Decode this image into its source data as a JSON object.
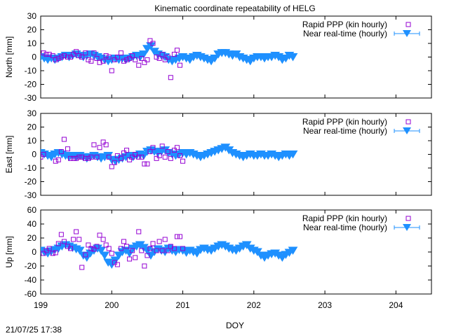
{
  "title": "Kinematic coordinate repeatability of HELG",
  "timestamp": "21/07/25 17:38",
  "colors": {
    "rapid": "#9400d3",
    "nrt": "#1e90ff",
    "axis": "#000000"
  },
  "chart_data": {
    "type": "scatter",
    "title": "Kinematic coordinate repeatability of HELG",
    "xlabel": "DOY",
    "xlim": [
      199,
      204.5
    ],
    "xticks": [
      199,
      200,
      201,
      202,
      203,
      204
    ],
    "xtick_labels": [
      "199",
      "200",
      "201",
      "202",
      "203",
      "204"
    ],
    "grid": false,
    "legend_position": "top-right",
    "legend": [
      "Rapid PPP (kin hourly)",
      "Near real-time (hourly)"
    ],
    "panels": [
      {
        "ylabel": "North [mm]",
        "ylim": [
          -30,
          30
        ],
        "yticks": [
          -30,
          -20,
          -10,
          0,
          10,
          20,
          30
        ],
        "series": [
          {
            "name": "Rapid PPP (kin hourly)",
            "marker": "open-square",
            "x": [
              199.04,
              199.08,
              199.12,
              199.17,
              199.21,
              199.25,
              199.29,
              199.33,
              199.38,
              199.42,
              199.46,
              199.5,
              199.54,
              199.58,
              199.63,
              199.67,
              199.71,
              199.75,
              199.79,
              199.83,
              199.88,
              199.92,
              199.96,
              200.0,
              200.04,
              200.08,
              200.13,
              200.17,
              200.21,
              200.25,
              200.29,
              200.33,
              200.38,
              200.42,
              200.46,
              200.5,
              200.54,
              200.58,
              200.63,
              200.67,
              200.71,
              200.75,
              200.79,
              200.83,
              200.88,
              200.92,
              200.96
            ],
            "y": [
              3,
              2,
              2,
              1,
              -2,
              -1,
              0,
              1,
              0,
              0,
              2,
              4,
              1,
              0,
              3,
              -2,
              -3,
              3,
              -1,
              -4,
              -3,
              1,
              0,
              -10,
              -2,
              0,
              3,
              -3,
              -2,
              -1,
              1,
              -2,
              -6,
              -1,
              -4,
              -2,
              12,
              10,
              0,
              -1,
              2,
              -2,
              0,
              -15,
              2,
              5,
              -6
            ]
          },
          {
            "name": "Near real-time (hourly)",
            "marker": "filled-triangle-down",
            "x": [
              199.0,
              199.05,
              199.1,
              199.15,
              199.2,
              199.25,
              199.3,
              199.35,
              199.4,
              199.45,
              199.5,
              199.55,
              199.6,
              199.65,
              199.7,
              199.75,
              199.8,
              199.85,
              199.9,
              199.95,
              200.0,
              200.05,
              200.1,
              200.15,
              200.2,
              200.25,
              200.3,
              200.35,
              200.4,
              200.45,
              200.5,
              200.55,
              200.6,
              200.65,
              200.7,
              200.75,
              200.8,
              200.85,
              200.9,
              200.95,
              201.0,
              201.05,
              201.1,
              201.15,
              201.2,
              201.25,
              201.3,
              201.35,
              201.4,
              201.45,
              201.5,
              201.55,
              201.6,
              201.65,
              201.7,
              201.75,
              201.8,
              201.85,
              201.9,
              201.95,
              202.0,
              202.05,
              202.1,
              202.15,
              202.2,
              202.25,
              202.3,
              202.35,
              202.4,
              202.45,
              202.5,
              202.55
            ],
            "y": [
              0,
              -1,
              -2,
              -1,
              -2,
              -1,
              0,
              1,
              0,
              1,
              2,
              1,
              0,
              1,
              2,
              1,
              0,
              -1,
              -2,
              -3,
              -2,
              -1,
              -2,
              -1,
              -2,
              -1,
              0,
              1,
              0,
              2,
              6,
              8,
              4,
              2,
              1,
              0,
              -2,
              -3,
              -2,
              -1,
              0,
              -1,
              -2,
              0,
              1,
              0,
              -1,
              -2,
              -3,
              -1,
              2,
              3,
              3,
              2,
              1,
              2,
              0,
              -1,
              -2,
              -3,
              -1,
              0,
              0,
              -1,
              0,
              0,
              1,
              0,
              -2,
              -1,
              1,
              0
            ]
          }
        ]
      },
      {
        "ylabel": "East [mm]",
        "ylim": [
          -30,
          30
        ],
        "yticks": [
          -30,
          -20,
          -10,
          0,
          10,
          20,
          30
        ],
        "series": [
          {
            "name": "Rapid PPP (kin hourly)",
            "marker": "open-square",
            "x": [
              199.0,
              199.04,
              199.21,
              199.25,
              199.29,
              199.33,
              199.38,
              199.42,
              199.46,
              199.5,
              199.54,
              199.58,
              199.63,
              199.67,
              199.71,
              199.75,
              199.79,
              199.83,
              199.88,
              199.92,
              199.96,
              200.0,
              200.04,
              200.08,
              200.13,
              200.17,
              200.21,
              200.25,
              200.29,
              200.33,
              200.38,
              200.42,
              200.46,
              200.5,
              200.54,
              200.58,
              200.63,
              200.67,
              200.71,
              200.75,
              200.79,
              200.83,
              200.88,
              200.92,
              200.96,
              201.0
            ],
            "y": [
              -2,
              0,
              -5,
              -4,
              2,
              11,
              4,
              -3,
              -3,
              -3,
              -2,
              -2,
              -3,
              -3,
              -2,
              7,
              -2,
              5,
              9,
              7,
              -2,
              -9,
              -6,
              -1,
              -3,
              1,
              3,
              -4,
              -2,
              0,
              -2,
              -2,
              -7,
              -7,
              2,
              5,
              -3,
              -1,
              6,
              -2,
              2,
              -3,
              3,
              5,
              -1,
              -5
            ]
          },
          {
            "name": "Near real-time (hourly)",
            "marker": "filled-triangle-down",
            "x": [
              199.0,
              199.05,
              199.1,
              199.15,
              199.2,
              199.25,
              199.3,
              199.35,
              199.4,
              199.45,
              199.5,
              199.55,
              199.6,
              199.65,
              199.7,
              199.75,
              199.8,
              199.85,
              199.9,
              199.95,
              200.0,
              200.05,
              200.1,
              200.15,
              200.2,
              200.25,
              200.3,
              200.35,
              200.4,
              200.45,
              200.5,
              200.55,
              200.6,
              200.65,
              200.7,
              200.75,
              200.8,
              200.85,
              200.9,
              200.95,
              201.0,
              201.05,
              201.1,
              201.15,
              201.2,
              201.25,
              201.3,
              201.35,
              201.4,
              201.45,
              201.5,
              201.55,
              201.6,
              201.65,
              201.7,
              201.75,
              201.8,
              201.85,
              201.9,
              201.95,
              202.0,
              202.05,
              202.1,
              202.15,
              202.2,
              202.25,
              202.3,
              202.35,
              202.4,
              202.45,
              202.5,
              202.55
            ],
            "y": [
              1,
              0,
              -1,
              -2,
              0,
              1,
              0,
              -1,
              -2,
              -1,
              -2,
              -1,
              -2,
              -3,
              -2,
              -1,
              -2,
              -3,
              -2,
              -1,
              -4,
              -5,
              -4,
              -3,
              -2,
              -1,
              -2,
              -1,
              0,
              -1,
              2,
              3,
              2,
              1,
              2,
              3,
              1,
              0,
              -1,
              0,
              1,
              0,
              1,
              0,
              -1,
              -2,
              -1,
              0,
              1,
              2,
              3,
              4,
              5,
              3,
              1,
              0,
              -1,
              -2,
              -1,
              0,
              -1,
              -1,
              0,
              -1,
              -1,
              0,
              -1,
              -2,
              -1,
              0,
              -1,
              0
            ]
          }
        ]
      },
      {
        "ylabel": "Up [mm]",
        "ylim": [
          -60,
          60
        ],
        "yticks": [
          -60,
          -40,
          -20,
          0,
          20,
          40,
          60
        ],
        "series": [
          {
            "name": "Rapid PPP (kin hourly)",
            "marker": "open-square",
            "x": [
              199.04,
              199.08,
              199.12,
              199.17,
              199.21,
              199.25,
              199.29,
              199.33,
              199.38,
              199.42,
              199.46,
              199.5,
              199.54,
              199.58,
              199.63,
              199.67,
              199.71,
              199.75,
              199.79,
              199.83,
              199.88,
              199.92,
              199.96,
              200.0,
              200.04,
              200.08,
              200.13,
              200.17,
              200.21,
              200.25,
              200.29,
              200.33,
              200.38,
              200.42,
              200.46,
              200.5,
              200.54,
              200.58,
              200.63,
              200.67,
              200.71,
              200.75,
              200.79,
              200.83,
              200.88,
              200.92,
              200.96,
              201.0
            ],
            "y": [
              -2,
              2,
              5,
              -2,
              -1,
              12,
              25,
              15,
              8,
              5,
              18,
              29,
              18,
              -22,
              -4,
              10,
              5,
              4,
              8,
              24,
              18,
              10,
              5,
              -2,
              -15,
              -18,
              5,
              15,
              8,
              -10,
              2,
              -8,
              29,
              2,
              -20,
              -5,
              5,
              12,
              2,
              15,
              2,
              18,
              2,
              8,
              5,
              22,
              22,
              5
            ]
          },
          {
            "name": "Near real-time (hourly)",
            "marker": "filled-triangle-down",
            "x": [
              199.0,
              199.05,
              199.1,
              199.15,
              199.2,
              199.25,
              199.3,
              199.35,
              199.4,
              199.45,
              199.5,
              199.55,
              199.6,
              199.65,
              199.7,
              199.75,
              199.8,
              199.85,
              199.9,
              199.95,
              200.0,
              200.05,
              200.1,
              200.15,
              200.2,
              200.25,
              200.3,
              200.35,
              200.4,
              200.45,
              200.5,
              200.55,
              200.6,
              200.65,
              200.7,
              200.75,
              200.8,
              200.85,
              200.9,
              200.95,
              201.0,
              201.05,
              201.1,
              201.15,
              201.2,
              201.25,
              201.3,
              201.35,
              201.4,
              201.45,
              201.5,
              201.55,
              201.6,
              201.65,
              201.7,
              201.75,
              201.8,
              201.85,
              201.9,
              201.95,
              202.0,
              202.05,
              202.1,
              202.15,
              202.2,
              202.25,
              202.3,
              202.35,
              202.4,
              202.45,
              202.5,
              202.55
            ],
            "y": [
              2,
              0,
              -2,
              1,
              3,
              5,
              8,
              10,
              8,
              6,
              4,
              2,
              -5,
              -8,
              -2,
              2,
              5,
              2,
              -5,
              -15,
              -18,
              -12,
              -5,
              0,
              2,
              -2,
              5,
              8,
              10,
              6,
              2,
              -5,
              0,
              4,
              2,
              0,
              5,
              2,
              0,
              3,
              2,
              -1,
              2,
              0,
              -2,
              3,
              5,
              3,
              2,
              5,
              8,
              10,
              8,
              5,
              3,
              2,
              5,
              8,
              10,
              5,
              2,
              0,
              -5,
              -8,
              -5,
              -3,
              -2,
              -5,
              -8,
              -4,
              -1,
              2
            ]
          }
        ]
      }
    ]
  }
}
